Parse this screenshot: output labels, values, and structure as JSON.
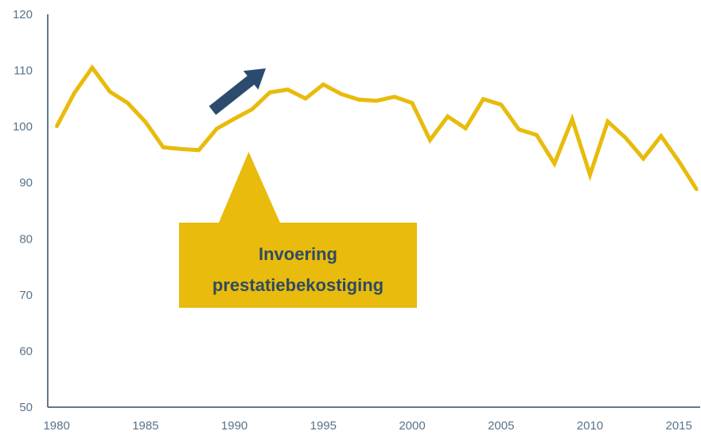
{
  "chart_data": {
    "type": "line",
    "title": "",
    "xlabel": "",
    "ylabel": "",
    "xlim": [
      1979.5,
      2016.2
    ],
    "ylim": [
      50,
      120
    ],
    "x_ticks": [
      "1980",
      "1985",
      "1990",
      "1995",
      "2000",
      "2005",
      "2010",
      "2015"
    ],
    "y_ticks": [
      "50",
      "60",
      "70",
      "80",
      "90",
      "100",
      "110",
      "120"
    ],
    "grid": false,
    "legend": "none",
    "line_color": "#e8bb0c",
    "series": [
      {
        "x": [
          1980,
          1981,
          1982,
          1983,
          1984,
          1985,
          1986,
          1987,
          1988,
          1989,
          1990,
          1991,
          1992,
          1993,
          1994,
          1995,
          1996,
          1997,
          1998,
          1999,
          2000,
          2001,
          2002,
          2003,
          2004,
          2005,
          2006,
          2007,
          2008,
          2009,
          2010,
          2011,
          2012,
          2013,
          2014,
          2015,
          2016
        ],
        "values": [
          100.0,
          106.0,
          110.5,
          106.2,
          104.2,
          100.8,
          96.3,
          96.0,
          95.8,
          99.6,
          101.4,
          103.1,
          106.1,
          106.6,
          105.0,
          107.5,
          105.8,
          104.8,
          104.6,
          105.3,
          104.2,
          97.6,
          101.8,
          99.7,
          104.9,
          103.9,
          99.5,
          98.5,
          93.4,
          101.3,
          91.4,
          100.9,
          98.0,
          94.3,
          98.3,
          93.8,
          88.8
        ]
      }
    ],
    "annotations": [
      {
        "type": "callout",
        "lines": [
          "Invoering",
          "prestatiebekostiging"
        ],
        "pointer_x": 1990.8,
        "pointer_y": 95.5,
        "color": "#e8bb0c",
        "text_color": "#2f4b63"
      },
      {
        "type": "arrow",
        "direction": "up-right",
        "color": "#2c4b6e"
      }
    ]
  }
}
